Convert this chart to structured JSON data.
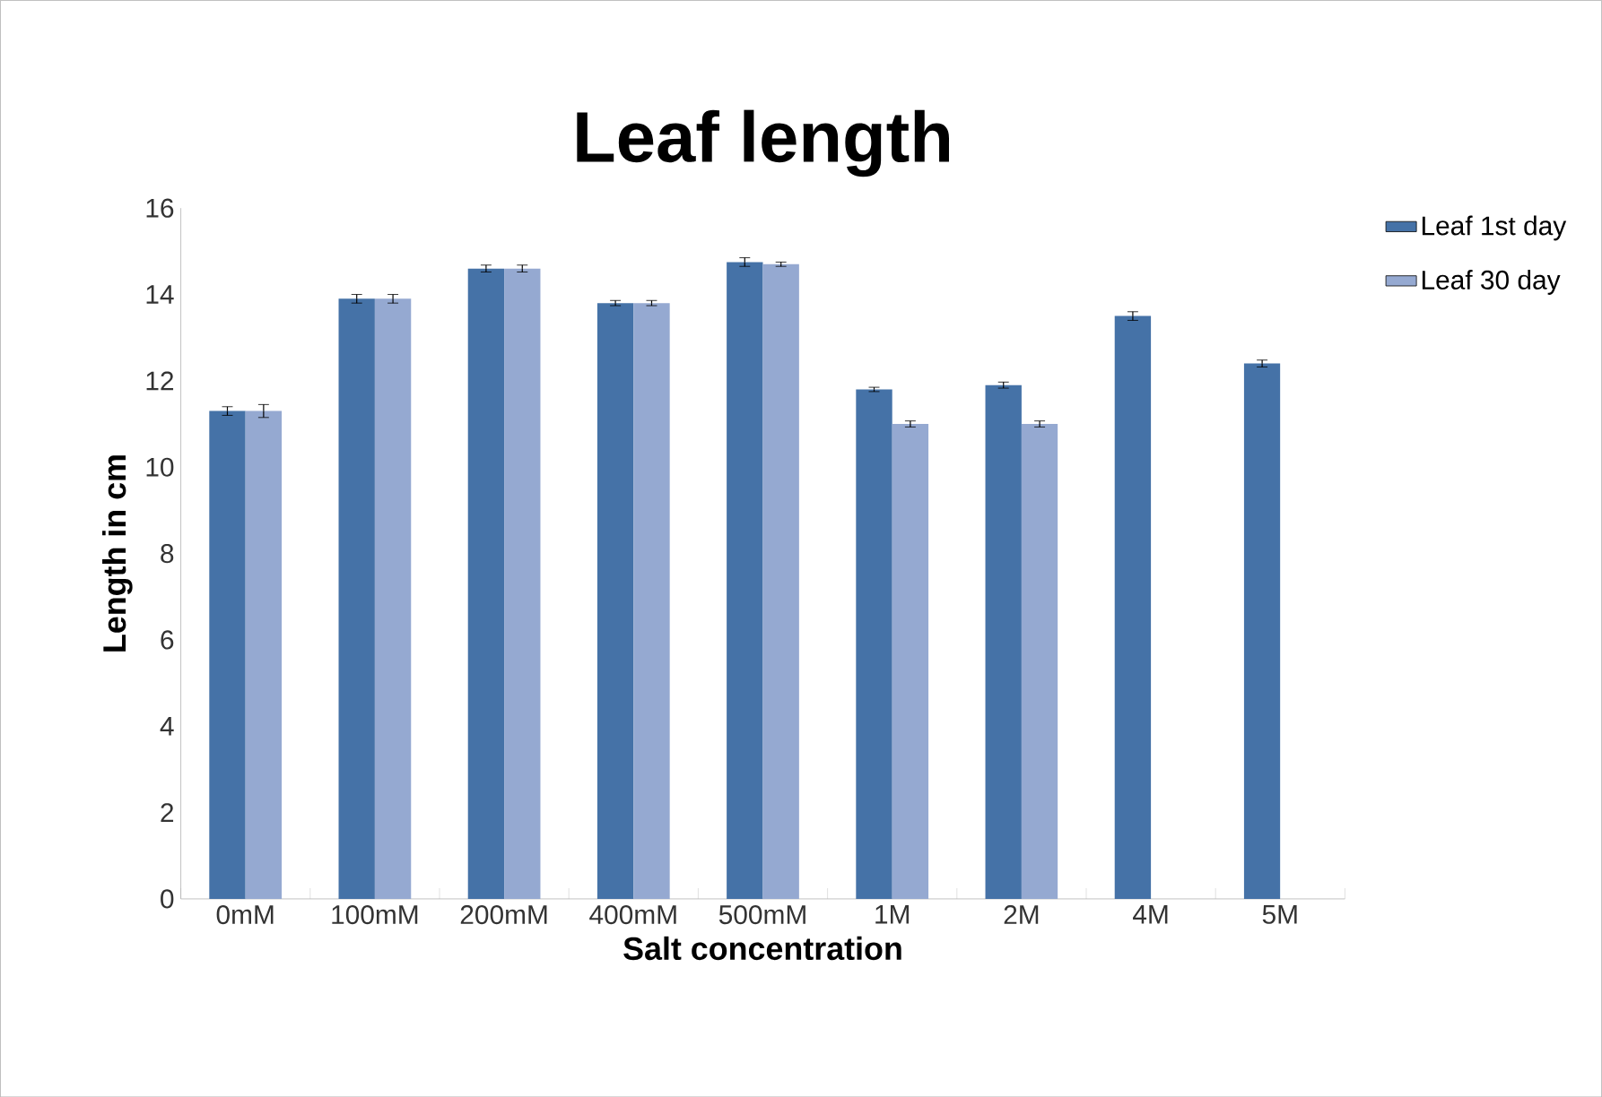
{
  "chart_data": {
    "type": "bar",
    "title": "Leaf length",
    "xlabel": "Salt concentration",
    "ylabel": "Length in cm",
    "categories": [
      "0mM",
      "100mM",
      "200mM",
      "400mM",
      "500mM",
      "1M",
      "2M",
      "4M",
      "5M"
    ],
    "series": [
      {
        "name": "Leaf 1st day",
        "color": "#4572a7",
        "values": [
          11.3,
          13.9,
          14.6,
          13.8,
          14.75,
          11.8,
          11.9,
          13.5,
          12.4
        ],
        "errors": [
          0.1,
          0.1,
          0.08,
          0.06,
          0.1,
          0.05,
          0.07,
          0.1,
          0.08
        ]
      },
      {
        "name": "Leaf 30 day",
        "color": "#95a9d1",
        "values": [
          11.3,
          13.9,
          14.6,
          13.8,
          14.7,
          11.0,
          11.0,
          null,
          null
        ],
        "errors": [
          0.15,
          0.1,
          0.08,
          0.06,
          0.05,
          0.07,
          0.07,
          null,
          null
        ]
      }
    ],
    "ylim": [
      0,
      16
    ],
    "yticks": [
      0,
      2,
      4,
      6,
      8,
      10,
      12,
      14,
      16
    ],
    "legend": "top right",
    "grid": false
  }
}
